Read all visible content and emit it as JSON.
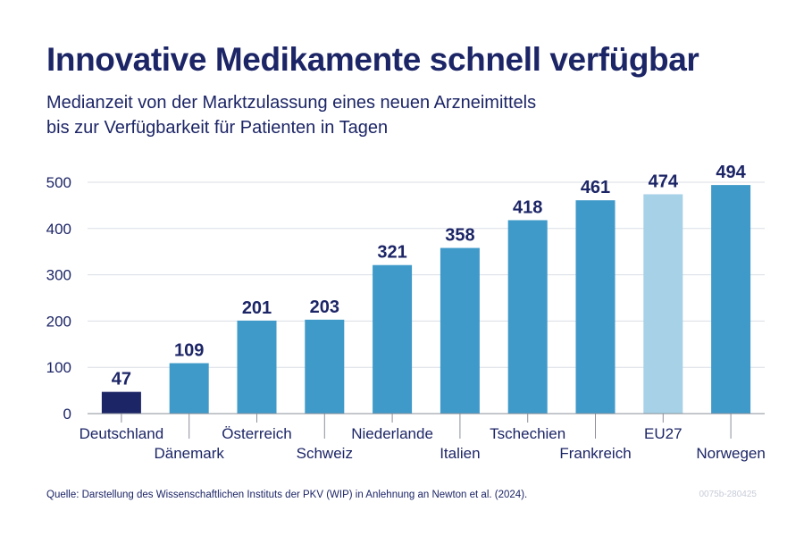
{
  "header": {
    "title": "Innovative Medikamente schnell verfügbar",
    "subtitle_line1": "Medianzeit von der Marktzulassung eines neuen Arzneimittels",
    "subtitle_line2": "bis zur Verfügbarkeit für Patienten in Tagen"
  },
  "footer": {
    "source": "Quelle: Darstellung des Wissenschaftlichen Instituts der PKV (WIP) in Anlehnung an Newton et al. (2024).",
    "code": "0075b-280425"
  },
  "colors": {
    "title": "#1c2566",
    "bar_default": "#3f9ac9",
    "bar_highlight": "#1c2566",
    "bar_eu": "#a7d1e7",
    "grid": "#d9dde5",
    "axis": "#8a8f99",
    "tick_text": "#1c2566"
  },
  "chart_data": {
    "type": "bar",
    "title": "Innovative Medikamente schnell verfügbar",
    "subtitle": "Medianzeit von der Marktzulassung eines neuen Arzneimittels bis zur Verfügbarkeit für Patienten in Tagen",
    "xlabel": "",
    "ylabel": "",
    "ylim": [
      0,
      500
    ],
    "yticks": [
      0,
      100,
      200,
      300,
      400,
      500
    ],
    "grid": true,
    "categories": [
      "Deutschland",
      "Dänemark",
      "Österreich",
      "Schweiz",
      "Niederlande",
      "Italien",
      "Tschechien",
      "Frankreich",
      "EU27",
      "Norwegen"
    ],
    "values": [
      47,
      109,
      201,
      203,
      321,
      358,
      418,
      461,
      474,
      494
    ],
    "bar_colors": [
      "#1c2566",
      "#3f9ac9",
      "#3f9ac9",
      "#3f9ac9",
      "#3f9ac9",
      "#3f9ac9",
      "#3f9ac9",
      "#3f9ac9",
      "#a7d1e7",
      "#3f9ac9"
    ]
  }
}
